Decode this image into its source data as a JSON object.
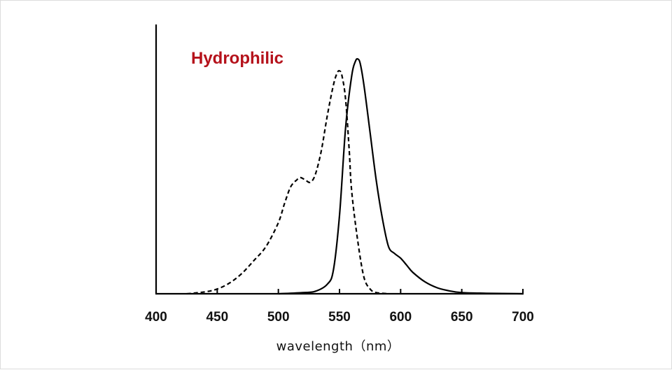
{
  "chart_data": {
    "type": "line",
    "xlabel": "wavelength（nm）",
    "ylabel": "",
    "title": "",
    "annotation": "Hydrophilic",
    "colors": {
      "annotation": "#b5121b",
      "line": "#000000",
      "axis": "#000000"
    },
    "xlim": [
      400,
      700
    ],
    "ylim": [
      0,
      1.0
    ],
    "xticks": [
      400,
      450,
      500,
      550,
      600,
      650,
      700
    ],
    "grid": false,
    "legend": "none",
    "series": [
      {
        "style": "dashed",
        "x": [
          425,
          440,
          450,
          460,
          470,
          480,
          490,
          500,
          505,
          510,
          515,
          518,
          522,
          526,
          530,
          535,
          540,
          545,
          548,
          550,
          552,
          555,
          558,
          560,
          565,
          570,
          575,
          580,
          590
        ],
        "y": [
          0.0,
          0.008,
          0.02,
          0.045,
          0.085,
          0.14,
          0.2,
          0.3,
          0.38,
          0.45,
          0.48,
          0.49,
          0.48,
          0.47,
          0.5,
          0.6,
          0.75,
          0.88,
          0.93,
          0.94,
          0.92,
          0.82,
          0.6,
          0.43,
          0.22,
          0.07,
          0.02,
          0.005,
          0.0
        ]
      },
      {
        "style": "solid",
        "x": [
          500,
          520,
          530,
          540,
          545,
          550,
          555,
          560,
          563,
          565,
          567,
          570,
          575,
          580,
          585,
          590,
          595,
          600,
          605,
          610,
          620,
          630,
          640,
          650,
          670,
          700
        ],
        "y": [
          0.0,
          0.005,
          0.01,
          0.04,
          0.1,
          0.33,
          0.7,
          0.92,
          0.98,
          0.99,
          0.97,
          0.88,
          0.68,
          0.48,
          0.32,
          0.2,
          0.17,
          0.15,
          0.12,
          0.09,
          0.05,
          0.025,
          0.012,
          0.005,
          0.002,
          0.0
        ]
      }
    ]
  }
}
